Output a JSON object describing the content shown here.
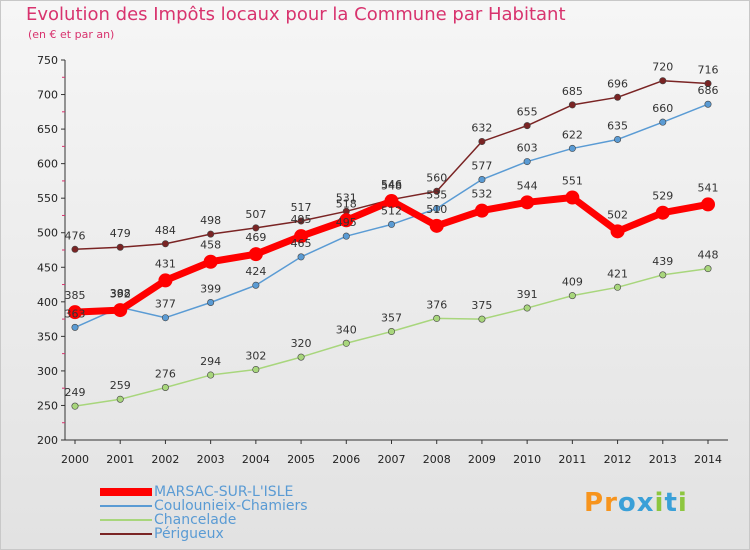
{
  "chart_data": {
    "type": "line",
    "title": "Evolution des Impôts locaux pour la Commune par Habitant",
    "subtitle": "(en € et par an)",
    "x": [
      "2000",
      "2001",
      "2002",
      "2003",
      "2004",
      "2005",
      "2006",
      "2007",
      "2008",
      "2009",
      "2010",
      "2011",
      "2012",
      "2013",
      "2014"
    ],
    "ylim": [
      200,
      750
    ],
    "yticks": [
      200,
      250,
      300,
      350,
      400,
      450,
      500,
      550,
      600,
      650,
      700,
      750
    ],
    "grid": false,
    "legend_placement": "bottom-left",
    "series": [
      {
        "name": "Périgueux",
        "color": "#7a2424",
        "values": [
          476,
          479,
          484,
          498,
          507,
          517,
          531,
          548,
          560,
          632,
          655,
          685,
          696,
          720,
          716
        ]
      },
      {
        "name": "Coulounieix-Chamiers",
        "color": "#5a9bd4",
        "values": [
          363,
          392,
          377,
          399,
          424,
          465,
          495,
          512,
          535,
          577,
          603,
          622,
          635,
          660,
          686
        ]
      },
      {
        "name": "Chancelade",
        "color": "#a8d67c",
        "values": [
          249,
          259,
          276,
          294,
          302,
          320,
          340,
          357,
          376,
          375,
          391,
          409,
          421,
          439,
          448
        ]
      },
      {
        "name": "MARSAC-SUR-L'ISLE",
        "color": "#ff0000",
        "values": [
          385,
          388,
          431,
          458,
          469,
          495,
          518,
          546,
          510,
          532,
          544,
          551,
          502,
          529,
          541
        ]
      }
    ],
    "legend": [
      {
        "name": "MARSAC-SUR-L'ISLE",
        "color": "#ff0000"
      },
      {
        "name": "Coulounieix-Chamiers",
        "color": "#5a9bd4"
      },
      {
        "name": "Chancelade",
        "color": "#a8d67c"
      },
      {
        "name": "Périgueux",
        "color": "#7a2424"
      }
    ]
  },
  "logo": {
    "letters": [
      "P",
      "r",
      "o",
      "x",
      "i",
      "t",
      "i"
    ],
    "colors": [
      "#f7941d",
      "#f7941d",
      "#3aa0d8",
      "#3aa0d8",
      "#8dc63f",
      "#3aa0d8",
      "#8dc63f"
    ]
  }
}
